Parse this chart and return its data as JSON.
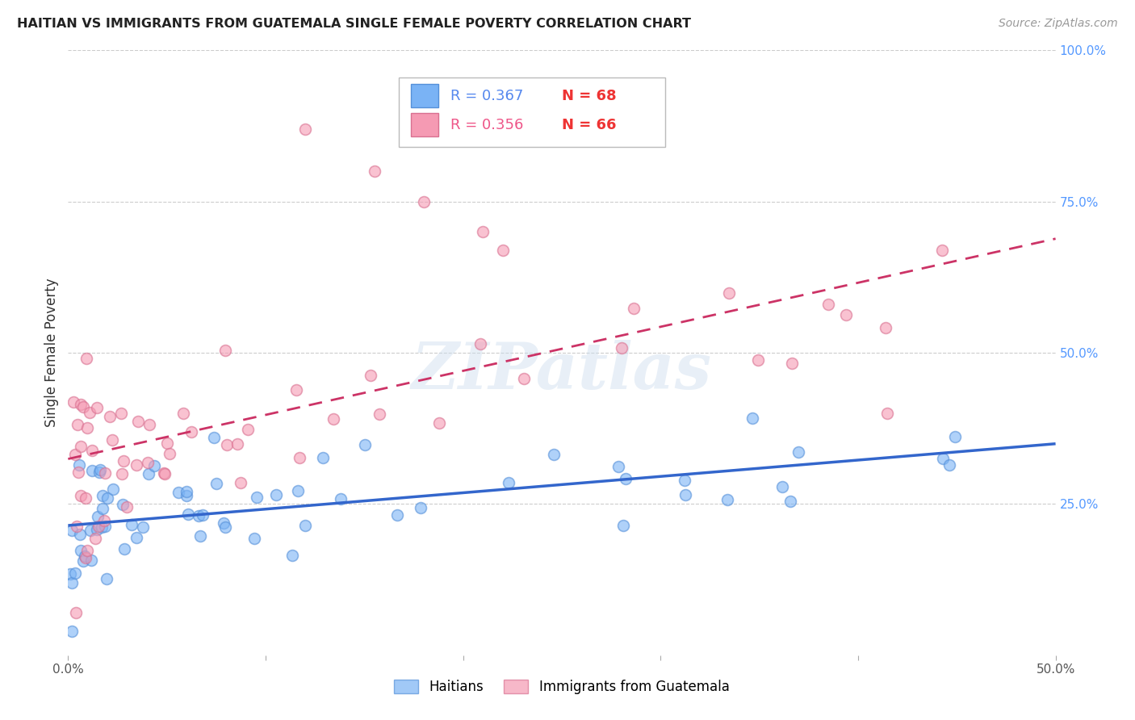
{
  "title": "HAITIAN VS IMMIGRANTS FROM GUATEMALA SINGLE FEMALE POVERTY CORRELATION CHART",
  "source": "Source: ZipAtlas.com",
  "ylabel": "Single Female Poverty",
  "xlim": [
    0.0,
    0.5
  ],
  "ylim": [
    0.0,
    1.0
  ],
  "xtick_positions": [
    0.0,
    0.1,
    0.2,
    0.3,
    0.4,
    0.5
  ],
  "xtick_labels": [
    "0.0%",
    "",
    "",
    "",
    "",
    "50.0%"
  ],
  "ytick_positions_right": [
    0.25,
    0.5,
    0.75,
    1.0
  ],
  "ytick_labels_right": [
    "25.0%",
    "50.0%",
    "75.0%",
    "100.0%"
  ],
  "grid_color": "#cccccc",
  "background_color": "#ffffff",
  "haitians_color": "#7ab3f5",
  "haitians_edge_color": "#5590d9",
  "guatemala_color": "#f59ab3",
  "guatemala_edge_color": "#d97090",
  "haitians_line_color": "#3366cc",
  "guatemala_line_color": "#cc3366",
  "haitians_R": "0.367",
  "haitians_N": "68",
  "guatemala_R": "0.356",
  "guatemala_N": "66",
  "legend_label_1": "Haitians",
  "legend_label_2": "Immigrants from Guatemala",
  "watermark": "ZIPatlas",
  "R_color_blue": "#5588ee",
  "R_color_pink": "#ee5588",
  "N_color": "#ee3333"
}
